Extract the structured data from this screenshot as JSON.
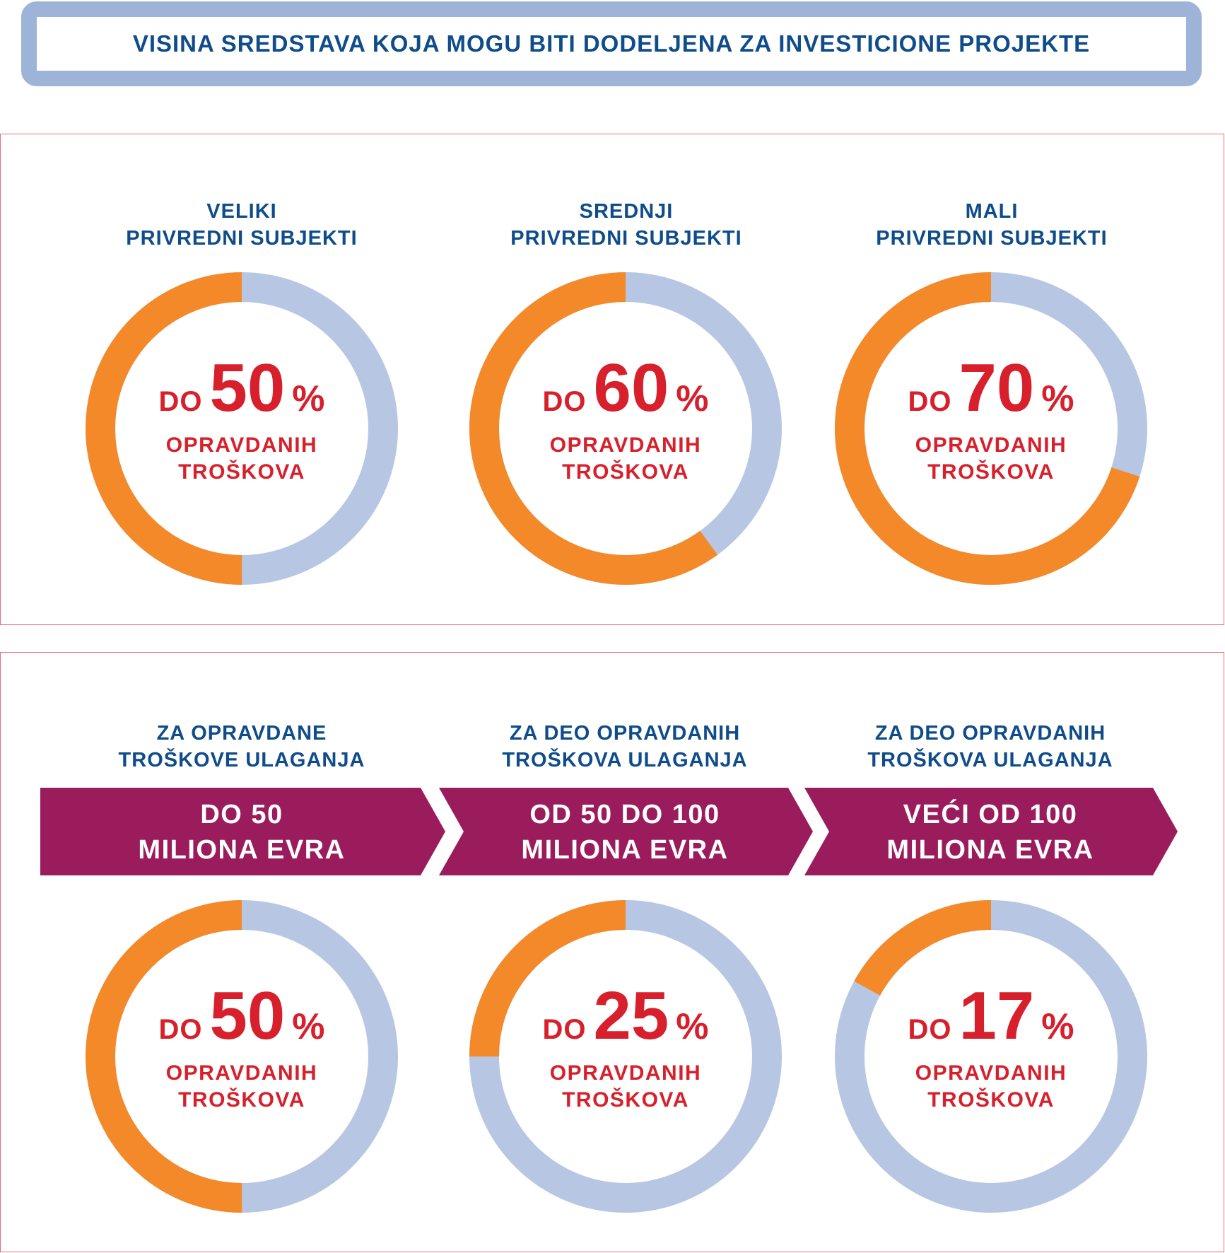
{
  "title": "VISINA SREDSTAVA KOJA MOGU BITI DODELJENA ZA INVESTICIONE PROJEKTE",
  "colors": {
    "orange": "#f4892a",
    "lightblue": "#b7c7e3",
    "red": "#d7202c",
    "navy": "#0f4c8a",
    "purple": "#9b1c5d"
  },
  "top_section": {
    "groups": [
      {
        "label_line1": "VELIKI",
        "label_line2": "PRIVREDNI SUBJEKTI",
        "prefix": "DO",
        "value": "50",
        "unit": "%",
        "sub1": "OPRAVDANIH",
        "sub2": "TROŠKOVA"
      },
      {
        "label_line1": "SREDNJI",
        "label_line2": "PRIVREDNI SUBJEKTI",
        "prefix": "DO",
        "value": "60",
        "unit": "%",
        "sub1": "OPRAVDANIH",
        "sub2": "TROŠKOVA"
      },
      {
        "label_line1": "MALI",
        "label_line2": "PRIVREDNI SUBJEKTI",
        "prefix": "DO",
        "value": "70",
        "unit": "%",
        "sub1": "OPRAVDANIH",
        "sub2": "TROŠKOVA"
      }
    ]
  },
  "bottom_section": {
    "groups": [
      {
        "label_line1": "ZA OPRAVDANE",
        "label_line2": "TROŠKOVE ULAGANJA",
        "arrow_line1": "DO 50",
        "arrow_line2": "MILIONA EVRA",
        "prefix": "DO",
        "value": "50",
        "unit": "%",
        "sub1": "OPRAVDANIH",
        "sub2": "TROŠKOVA"
      },
      {
        "label_line1": "ZA DEO OPRAVDANIH",
        "label_line2": "TROŠKOVA ULAGANJA",
        "arrow_line1": "OD 50 DO 100",
        "arrow_line2": "MILIONA  EVRA",
        "prefix": "DO",
        "value": "25",
        "unit": "%",
        "sub1": "OPRAVDANIH",
        "sub2": "TROŠKOVA"
      },
      {
        "label_line1": "ZA DEO OPRAVDANIH",
        "label_line2": "TROŠKOVA ULAGANJA",
        "arrow_line1": "VEĆI OD 100",
        "arrow_line2": "MILIONA  EVRA",
        "prefix": "DO",
        "value": "17",
        "unit": "%",
        "sub1": "OPRAVDANIH",
        "sub2": "TROŠKOVA"
      }
    ]
  },
  "chart_data": [
    {
      "type": "pie",
      "variant": "donut",
      "categories": [
        "VELIKI PRIVREDNI SUBJEKTI",
        "SREDNJI PRIVREDNI SUBJEKTI",
        "MALI PRIVREDNI SUBJEKTI"
      ],
      "values": [
        50,
        60,
        70
      ],
      "unit": "%",
      "max": 100
    },
    {
      "type": "pie",
      "variant": "donut",
      "categories": [
        "DO 50 MILIONA EVRA",
        "OD 50 DO 100 MILIONA  EVRA",
        "VEĆI OD 100 MILIONA  EVRA"
      ],
      "values": [
        50,
        25,
        17
      ],
      "unit": "%",
      "max": 100
    }
  ]
}
